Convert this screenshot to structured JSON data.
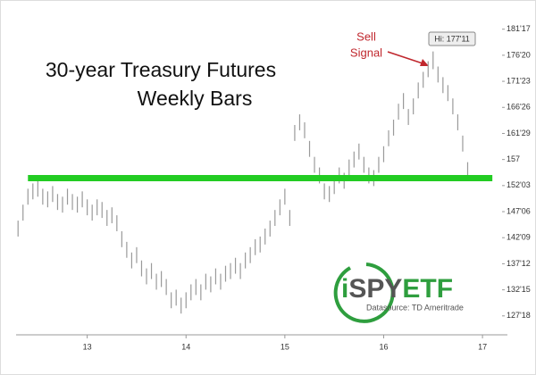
{
  "chart_data": {
    "type": "ohlc",
    "title_lines": [
      "30-year Treasury Futures",
      "Weekly Bars"
    ],
    "annotation": {
      "lines": [
        "Sell",
        "Signal"
      ],
      "color": "#c0272d"
    },
    "high_label": "Hi: 177'11",
    "bar_color": "#9a9a9a",
    "support": {
      "value": 153.5,
      "color": "#22cc22"
    },
    "logo": {
      "prefix": "i",
      "middle": "SPY",
      "suffix": "ETF",
      "source": "Datasource: TD Ameritrade"
    },
    "x": [
      12.3,
      12.35,
      12.4,
      12.45,
      12.5,
      12.55,
      12.6,
      12.65,
      12.7,
      12.75,
      12.8,
      12.85,
      12.9,
      12.95,
      13.0,
      13.05,
      13.1,
      13.15,
      13.2,
      13.25,
      13.3,
      13.35,
      13.4,
      13.45,
      13.5,
      13.55,
      13.6,
      13.65,
      13.7,
      13.75,
      13.8,
      13.85,
      13.9,
      13.95,
      14.0,
      14.05,
      14.1,
      14.15,
      14.2,
      14.25,
      14.3,
      14.35,
      14.4,
      14.45,
      14.5,
      14.55,
      14.6,
      14.65,
      14.7,
      14.75,
      14.8,
      14.85,
      14.9,
      14.95,
      15.0,
      15.05,
      15.1,
      15.15,
      15.2,
      15.25,
      15.3,
      15.35,
      15.4,
      15.45,
      15.5,
      15.55,
      15.6,
      15.65,
      15.7,
      15.75,
      15.8,
      15.85,
      15.9,
      15.95,
      16.0,
      16.05,
      16.1,
      16.15,
      16.2,
      16.25,
      16.3,
      16.35,
      16.4,
      16.45,
      16.5,
      16.55,
      16.6,
      16.65,
      16.7,
      16.75,
      16.8,
      16.85
    ],
    "high": [
      145.5,
      148.5,
      151.5,
      152.5,
      153,
      151.5,
      151,
      152,
      150.5,
      150,
      151.5,
      150.5,
      150,
      151,
      149.5,
      148.5,
      149.5,
      149,
      147.5,
      148,
      146.5,
      143.5,
      141.5,
      139.5,
      140.5,
      138,
      136.5,
      137.5,
      135.5,
      136,
      134.5,
      132,
      132.5,
      131,
      132,
      133.5,
      134.5,
      133.5,
      135.5,
      135,
      136.5,
      135.5,
      137,
      137.5,
      138.5,
      137.5,
      139.5,
      140.5,
      142,
      142.5,
      144,
      145.5,
      147.5,
      149.5,
      151.5,
      147.5,
      163.5,
      165.5,
      164,
      160.5,
      157.5,
      155.5,
      152.5,
      152,
      153.5,
      155.5,
      154.5,
      157,
      158.5,
      160,
      157.5,
      155.5,
      155,
      157.5,
      159.5,
      162.5,
      164.5,
      167.5,
      169.5,
      166.5,
      168.5,
      171.5,
      173.5,
      175.5,
      177.34,
      174.5,
      172.5,
      171,
      168.5,
      165.5,
      161.5,
      156.5
    ],
    "low": [
      142.5,
      145.5,
      148.5,
      149.5,
      150,
      148.5,
      148,
      149,
      147.5,
      147,
      148.5,
      147.5,
      147,
      148,
      146.5,
      145.5,
      146.5,
      146,
      144.5,
      145,
      143.5,
      140.5,
      138.5,
      136.5,
      137.5,
      135,
      133.5,
      134.5,
      132.5,
      133,
      131.5,
      129,
      129.5,
      128,
      129,
      130.5,
      131.5,
      130.5,
      132.5,
      132,
      133.5,
      132.5,
      134,
      134.5,
      135.5,
      134.5,
      136.5,
      137.5,
      139,
      139.5,
      141,
      142.5,
      144.5,
      146.5,
      148.5,
      144.5,
      160.5,
      162.5,
      161,
      157.5,
      154.5,
      152.5,
      149.5,
      149,
      150.5,
      152.5,
      151.5,
      154,
      155.5,
      157,
      154.5,
      152.5,
      152,
      154.5,
      156.5,
      159.5,
      161.5,
      164.5,
      166.5,
      163.5,
      165.5,
      168.5,
      170.5,
      172.5,
      174,
      171.5,
      169.5,
      168,
      165.5,
      162.5,
      158.5,
      153.5
    ],
    "xlim": [
      12.28,
      17.18
    ],
    "xticks": [
      13,
      14,
      15,
      16,
      17
    ],
    "ylim": [
      124,
      184
    ],
    "yticks": [
      {
        "value": 181.53125,
        "label": "181'17"
      },
      {
        "value": 176.625,
        "label": "176'20"
      },
      {
        "value": 171.71875,
        "label": "171'23"
      },
      {
        "value": 166.8125,
        "label": "166'26"
      },
      {
        "value": 161.90625,
        "label": "161'29"
      },
      157,
      {
        "value": 152.09375,
        "label": "152'03"
      },
      {
        "value": 147.1875,
        "label": "147'06"
      },
      {
        "value": 142.28125,
        "label": "142'09"
      },
      {
        "value": 137.375,
        "label": "137'12"
      },
      {
        "value": 132.46875,
        "label": "132'15"
      },
      {
        "value": 127.5625,
        "label": "127'18"
      }
    ]
  }
}
